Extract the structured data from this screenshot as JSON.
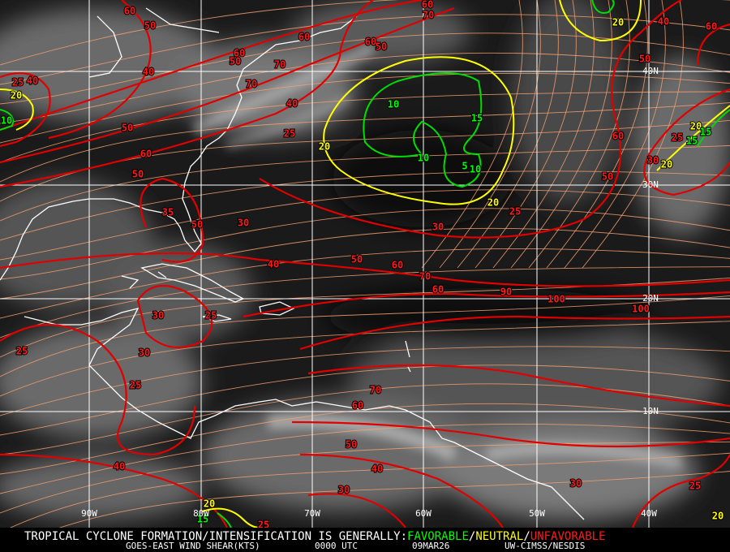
{
  "map": {
    "longitude_labels": [
      "90W",
      "80W",
      "70W",
      "60W",
      "50W",
      "40W"
    ],
    "latitude_labels": [
      "40N",
      "30N",
      "20N",
      "10N"
    ],
    "contour_labels": {
      "unfavorable": [
        60,
        50,
        50,
        60,
        60,
        70,
        70,
        40,
        40,
        40,
        25,
        50,
        60,
        50,
        35,
        50,
        30,
        40,
        50,
        60,
        70,
        60,
        90,
        100,
        100,
        30,
        25,
        60,
        50,
        40,
        60,
        50,
        30,
        25,
        30,
        25,
        30,
        25,
        25,
        70,
        60,
        50,
        40,
        30,
        30,
        25,
        40,
        25,
        60,
        70,
        60,
        50,
        25
      ],
      "neutral": [
        20,
        20,
        20,
        20,
        20,
        20,
        20,
        20
      ],
      "favorable": [
        10,
        15,
        10,
        5,
        10,
        10,
        15,
        15,
        15
      ]
    },
    "footer": {
      "headline": "TROPICAL CYCLONE FORMATION/INTENSIFICATION IS GENERALLY:",
      "favorable": "FAVORABLE",
      "separator": "/",
      "neutral": "NEUTRAL",
      "unfavorable": "UNFAVORABLE",
      "product": "GOES-EAST WIND SHEAR(KTS)",
      "time": "0000 UTC",
      "date": "09MAR26",
      "source": "UW-CIMSS/NESDIS"
    }
  }
}
